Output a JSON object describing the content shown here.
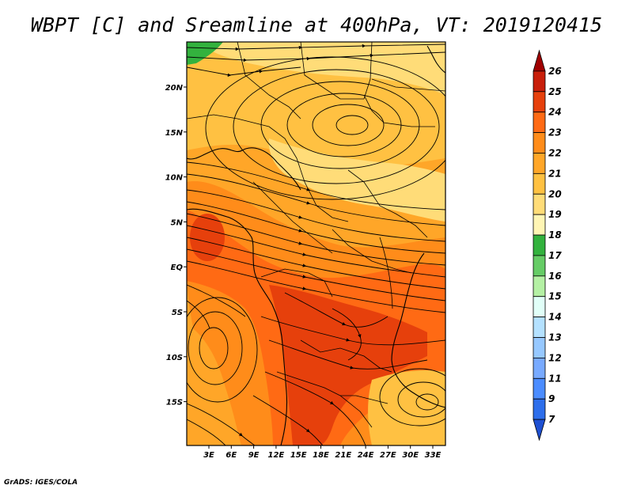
{
  "title": "WBPT [C] and Sreamline at 400hPa, VT: 2019120415",
  "credit": "GrADS: IGES/COLA",
  "map": {
    "lat_labels": [
      "20N",
      "15N",
      "10N",
      "5N",
      "EQ",
      "5S",
      "10S",
      "15S"
    ],
    "lon_labels": [
      "3E",
      "6E",
      "9E",
      "12E",
      "15E",
      "18E",
      "21E",
      "24E",
      "27E",
      "30E",
      "33E"
    ]
  },
  "colorbar": {
    "labels": [
      "26",
      "25",
      "24",
      "23",
      "22",
      "21",
      "20",
      "19",
      "18",
      "17",
      "16",
      "15",
      "14",
      "13",
      "12",
      "11",
      "9",
      "7"
    ],
    "colors": [
      "#a00000",
      "#c81e0a",
      "#e6400c",
      "#ff6a14",
      "#ff8c1a",
      "#ffa628",
      "#ffc142",
      "#ffdc78",
      "#fff5b4",
      "#33b23e",
      "#66cc66",
      "#b4f0a4",
      "#e1fff8",
      "#b4e1ff",
      "#96c8ff",
      "#78aaff",
      "#4b8cff",
      "#2d6eeb",
      "#1e50d2"
    ]
  },
  "field_colors": {
    "c19": "#ffdc78",
    "c20": "#ffc142",
    "c21": "#ffa628",
    "c22": "#ff8c1a",
    "c23": "#ff6a14",
    "c24": "#e6400c",
    "c17": "#33b23e"
  }
}
